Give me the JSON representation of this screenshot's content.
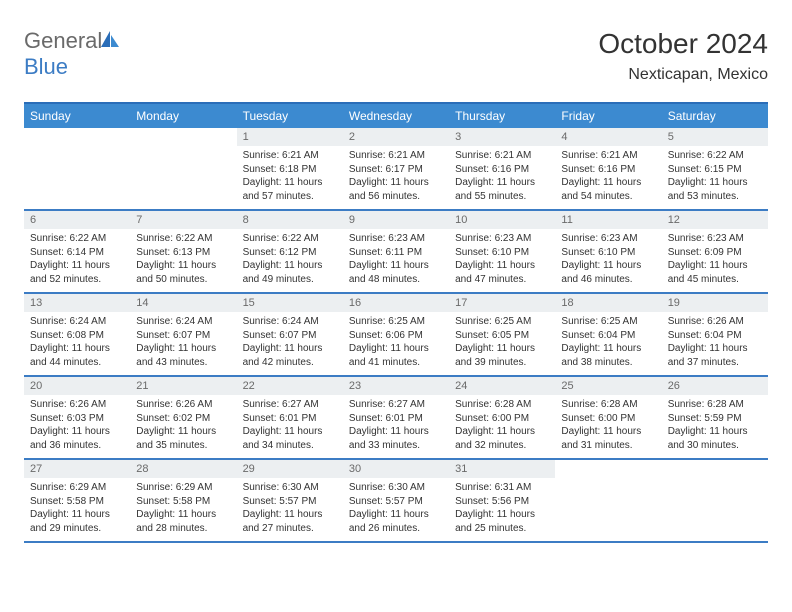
{
  "brand": {
    "word1": "General",
    "word2": "Blue"
  },
  "title": "October 2024",
  "location": "Nexticapan, Mexico",
  "colors": {
    "header_bg": "#3c8ad0",
    "header_text": "#ffffff",
    "rule": "#3c7cc4",
    "daynum_bg": "#eceff1",
    "daynum_text": "#6a6a6a",
    "body_text": "#333333",
    "logo_gray": "#6a6a6a",
    "logo_blue": "#3c7cc4"
  },
  "day_headers": [
    "Sunday",
    "Monday",
    "Tuesday",
    "Wednesday",
    "Thursday",
    "Friday",
    "Saturday"
  ],
  "weeks": [
    [
      {
        "n": "",
        "sr": "",
        "ss": "",
        "dl": ""
      },
      {
        "n": "",
        "sr": "",
        "ss": "",
        "dl": ""
      },
      {
        "n": "1",
        "sr": "Sunrise: 6:21 AM",
        "ss": "Sunset: 6:18 PM",
        "dl": "Daylight: 11 hours and 57 minutes."
      },
      {
        "n": "2",
        "sr": "Sunrise: 6:21 AM",
        "ss": "Sunset: 6:17 PM",
        "dl": "Daylight: 11 hours and 56 minutes."
      },
      {
        "n": "3",
        "sr": "Sunrise: 6:21 AM",
        "ss": "Sunset: 6:16 PM",
        "dl": "Daylight: 11 hours and 55 minutes."
      },
      {
        "n": "4",
        "sr": "Sunrise: 6:21 AM",
        "ss": "Sunset: 6:16 PM",
        "dl": "Daylight: 11 hours and 54 minutes."
      },
      {
        "n": "5",
        "sr": "Sunrise: 6:22 AM",
        "ss": "Sunset: 6:15 PM",
        "dl": "Daylight: 11 hours and 53 minutes."
      }
    ],
    [
      {
        "n": "6",
        "sr": "Sunrise: 6:22 AM",
        "ss": "Sunset: 6:14 PM",
        "dl": "Daylight: 11 hours and 52 minutes."
      },
      {
        "n": "7",
        "sr": "Sunrise: 6:22 AM",
        "ss": "Sunset: 6:13 PM",
        "dl": "Daylight: 11 hours and 50 minutes."
      },
      {
        "n": "8",
        "sr": "Sunrise: 6:22 AM",
        "ss": "Sunset: 6:12 PM",
        "dl": "Daylight: 11 hours and 49 minutes."
      },
      {
        "n": "9",
        "sr": "Sunrise: 6:23 AM",
        "ss": "Sunset: 6:11 PM",
        "dl": "Daylight: 11 hours and 48 minutes."
      },
      {
        "n": "10",
        "sr": "Sunrise: 6:23 AM",
        "ss": "Sunset: 6:10 PM",
        "dl": "Daylight: 11 hours and 47 minutes."
      },
      {
        "n": "11",
        "sr": "Sunrise: 6:23 AM",
        "ss": "Sunset: 6:10 PM",
        "dl": "Daylight: 11 hours and 46 minutes."
      },
      {
        "n": "12",
        "sr": "Sunrise: 6:23 AM",
        "ss": "Sunset: 6:09 PM",
        "dl": "Daylight: 11 hours and 45 minutes."
      }
    ],
    [
      {
        "n": "13",
        "sr": "Sunrise: 6:24 AM",
        "ss": "Sunset: 6:08 PM",
        "dl": "Daylight: 11 hours and 44 minutes."
      },
      {
        "n": "14",
        "sr": "Sunrise: 6:24 AM",
        "ss": "Sunset: 6:07 PM",
        "dl": "Daylight: 11 hours and 43 minutes."
      },
      {
        "n": "15",
        "sr": "Sunrise: 6:24 AM",
        "ss": "Sunset: 6:07 PM",
        "dl": "Daylight: 11 hours and 42 minutes."
      },
      {
        "n": "16",
        "sr": "Sunrise: 6:25 AM",
        "ss": "Sunset: 6:06 PM",
        "dl": "Daylight: 11 hours and 41 minutes."
      },
      {
        "n": "17",
        "sr": "Sunrise: 6:25 AM",
        "ss": "Sunset: 6:05 PM",
        "dl": "Daylight: 11 hours and 39 minutes."
      },
      {
        "n": "18",
        "sr": "Sunrise: 6:25 AM",
        "ss": "Sunset: 6:04 PM",
        "dl": "Daylight: 11 hours and 38 minutes."
      },
      {
        "n": "19",
        "sr": "Sunrise: 6:26 AM",
        "ss": "Sunset: 6:04 PM",
        "dl": "Daylight: 11 hours and 37 minutes."
      }
    ],
    [
      {
        "n": "20",
        "sr": "Sunrise: 6:26 AM",
        "ss": "Sunset: 6:03 PM",
        "dl": "Daylight: 11 hours and 36 minutes."
      },
      {
        "n": "21",
        "sr": "Sunrise: 6:26 AM",
        "ss": "Sunset: 6:02 PM",
        "dl": "Daylight: 11 hours and 35 minutes."
      },
      {
        "n": "22",
        "sr": "Sunrise: 6:27 AM",
        "ss": "Sunset: 6:01 PM",
        "dl": "Daylight: 11 hours and 34 minutes."
      },
      {
        "n": "23",
        "sr": "Sunrise: 6:27 AM",
        "ss": "Sunset: 6:01 PM",
        "dl": "Daylight: 11 hours and 33 minutes."
      },
      {
        "n": "24",
        "sr": "Sunrise: 6:28 AM",
        "ss": "Sunset: 6:00 PM",
        "dl": "Daylight: 11 hours and 32 minutes."
      },
      {
        "n": "25",
        "sr": "Sunrise: 6:28 AM",
        "ss": "Sunset: 6:00 PM",
        "dl": "Daylight: 11 hours and 31 minutes."
      },
      {
        "n": "26",
        "sr": "Sunrise: 6:28 AM",
        "ss": "Sunset: 5:59 PM",
        "dl": "Daylight: 11 hours and 30 minutes."
      }
    ],
    [
      {
        "n": "27",
        "sr": "Sunrise: 6:29 AM",
        "ss": "Sunset: 5:58 PM",
        "dl": "Daylight: 11 hours and 29 minutes."
      },
      {
        "n": "28",
        "sr": "Sunrise: 6:29 AM",
        "ss": "Sunset: 5:58 PM",
        "dl": "Daylight: 11 hours and 28 minutes."
      },
      {
        "n": "29",
        "sr": "Sunrise: 6:30 AM",
        "ss": "Sunset: 5:57 PM",
        "dl": "Daylight: 11 hours and 27 minutes."
      },
      {
        "n": "30",
        "sr": "Sunrise: 6:30 AM",
        "ss": "Sunset: 5:57 PM",
        "dl": "Daylight: 11 hours and 26 minutes."
      },
      {
        "n": "31",
        "sr": "Sunrise: 6:31 AM",
        "ss": "Sunset: 5:56 PM",
        "dl": "Daylight: 11 hours and 25 minutes."
      },
      {
        "n": "",
        "sr": "",
        "ss": "",
        "dl": ""
      },
      {
        "n": "",
        "sr": "",
        "ss": "",
        "dl": ""
      }
    ]
  ]
}
